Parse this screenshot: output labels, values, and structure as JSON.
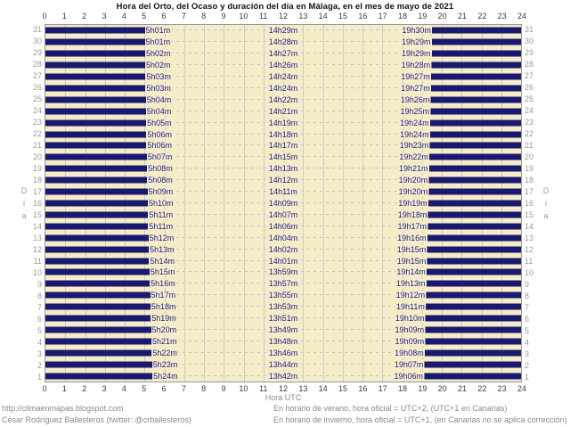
{
  "title_text": "Hora del Orto, del Ocaso y duración del día en Málaga, en el mes de mayo de 2021",
  "axis": {
    "hours": [
      "0",
      "1",
      "2",
      "3",
      "4",
      "5",
      "6",
      "7",
      "8",
      "9",
      "10",
      "11",
      "12",
      "13",
      "14",
      "15",
      "16",
      "17",
      "18",
      "19",
      "20",
      "21",
      "22",
      "23",
      "24"
    ],
    "xlabel": "Hora UTC",
    "ylabel": "Día",
    "ylabel_chars": [
      "D",
      "í",
      "a"
    ]
  },
  "footer": {
    "left_line1": "http://climaenmapas.blogspot.com",
    "left_line2": "César Rodríguez Ballesteros (twitter: @crballesteros)",
    "right_line1": "En horario de verano, hora oficial = UTC+2, (UTC+1 en Canarias)",
    "right_line2": "En horario de invierno, hora oficial = UTC+1, (en Canarias no se aplica corrección)"
  },
  "colors": {
    "background": "#ffffff",
    "plot_bg": "#f5ecc8",
    "bar": "#191970",
    "label": "#1f1f8f",
    "grid": "#cccccc",
    "dash": "#c6c6c6",
    "border": "#999999",
    "axis_text": "#3c3c3c",
    "day_number": "#9c9c9c",
    "footer_text": "#8a8a8a"
  },
  "chart_data": {
    "type": "bar",
    "subtype": "diurnal-gantt",
    "title": "Hora del Orto, del Ocaso y duración del día en Málaga, en el mes de mayo de 2021",
    "xlabel": "Hora UTC",
    "ylabel": "Día",
    "xlim": [
      0,
      24
    ],
    "grid": true,
    "legend": "none",
    "bar_meaning": "dark bars = night (00:00→sunrise and sunset→24:00), light area = daylight",
    "days": [
      {
        "day": 31,
        "sunrise": "5h01m",
        "day_length": "14h29m",
        "sunset": "19h30m"
      },
      {
        "day": 30,
        "sunrise": "5h01m",
        "day_length": "14h28m",
        "sunset": "19h29m"
      },
      {
        "day": 29,
        "sunrise": "5h02m",
        "day_length": "14h27m",
        "sunset": "19h29m"
      },
      {
        "day": 28,
        "sunrise": "5h02m",
        "day_length": "14h26m",
        "sunset": "19h28m"
      },
      {
        "day": 27,
        "sunrise": "5h03m",
        "day_length": "14h24m",
        "sunset": "19h27m"
      },
      {
        "day": 26,
        "sunrise": "5h03m",
        "day_length": "14h24m",
        "sunset": "19h27m"
      },
      {
        "day": 25,
        "sunrise": "5h04m",
        "day_length": "14h22m",
        "sunset": "19h26m"
      },
      {
        "day": 24,
        "sunrise": "5h04m",
        "day_length": "14h21m",
        "sunset": "19h25m"
      },
      {
        "day": 23,
        "sunrise": "5h05m",
        "day_length": "14h19m",
        "sunset": "19h24m"
      },
      {
        "day": 22,
        "sunrise": "5h06m",
        "day_length": "14h18m",
        "sunset": "19h24m"
      },
      {
        "day": 21,
        "sunrise": "5h06m",
        "day_length": "14h17m",
        "sunset": "19h23m"
      },
      {
        "day": 20,
        "sunrise": "5h07m",
        "day_length": "14h15m",
        "sunset": "19h22m"
      },
      {
        "day": 19,
        "sunrise": "5h08m",
        "day_length": "14h13m",
        "sunset": "19h21m"
      },
      {
        "day": 18,
        "sunrise": "5h08m",
        "day_length": "14h12m",
        "sunset": "19h20m"
      },
      {
        "day": 17,
        "sunrise": "5h09m",
        "day_length": "14h11m",
        "sunset": "19h20m"
      },
      {
        "day": 16,
        "sunrise": "5h10m",
        "day_length": "14h09m",
        "sunset": "19h19m"
      },
      {
        "day": 15,
        "sunrise": "5h11m",
        "day_length": "14h07m",
        "sunset": "19h18m"
      },
      {
        "day": 14,
        "sunrise": "5h11m",
        "day_length": "14h06m",
        "sunset": "19h17m"
      },
      {
        "day": 13,
        "sunrise": "5h12m",
        "day_length": "14h04m",
        "sunset": "19h16m"
      },
      {
        "day": 12,
        "sunrise": "5h13m",
        "day_length": "14h02m",
        "sunset": "19h15m"
      },
      {
        "day": 11,
        "sunrise": "5h14m",
        "day_length": "14h01m",
        "sunset": "19h15m"
      },
      {
        "day": 10,
        "sunrise": "5h15m",
        "day_length": "13h59m",
        "sunset": "19h14m"
      },
      {
        "day": 9,
        "sunrise": "5h16m",
        "day_length": "13h57m",
        "sunset": "19h13m"
      },
      {
        "day": 8,
        "sunrise": "5h17m",
        "day_length": "13h55m",
        "sunset": "19h12m"
      },
      {
        "day": 7,
        "sunrise": "5h18m",
        "day_length": "13h53m",
        "sunset": "19h11m"
      },
      {
        "day": 6,
        "sunrise": "5h19m",
        "day_length": "13h51m",
        "sunset": "19h10m"
      },
      {
        "day": 5,
        "sunrise": "5h20m",
        "day_length": "13h49m",
        "sunset": "19h09m"
      },
      {
        "day": 4,
        "sunrise": "5h21m",
        "day_length": "13h48m",
        "sunset": "19h09m"
      },
      {
        "day": 3,
        "sunrise": "5h22m",
        "day_length": "13h46m",
        "sunset": "19h08m"
      },
      {
        "day": 2,
        "sunrise": "5h23m",
        "day_length": "13h44m",
        "sunset": "19h07m"
      },
      {
        "day": 1,
        "sunrise": "5h24m",
        "day_length": "13h42m",
        "sunset": "19h06m"
      }
    ]
  }
}
